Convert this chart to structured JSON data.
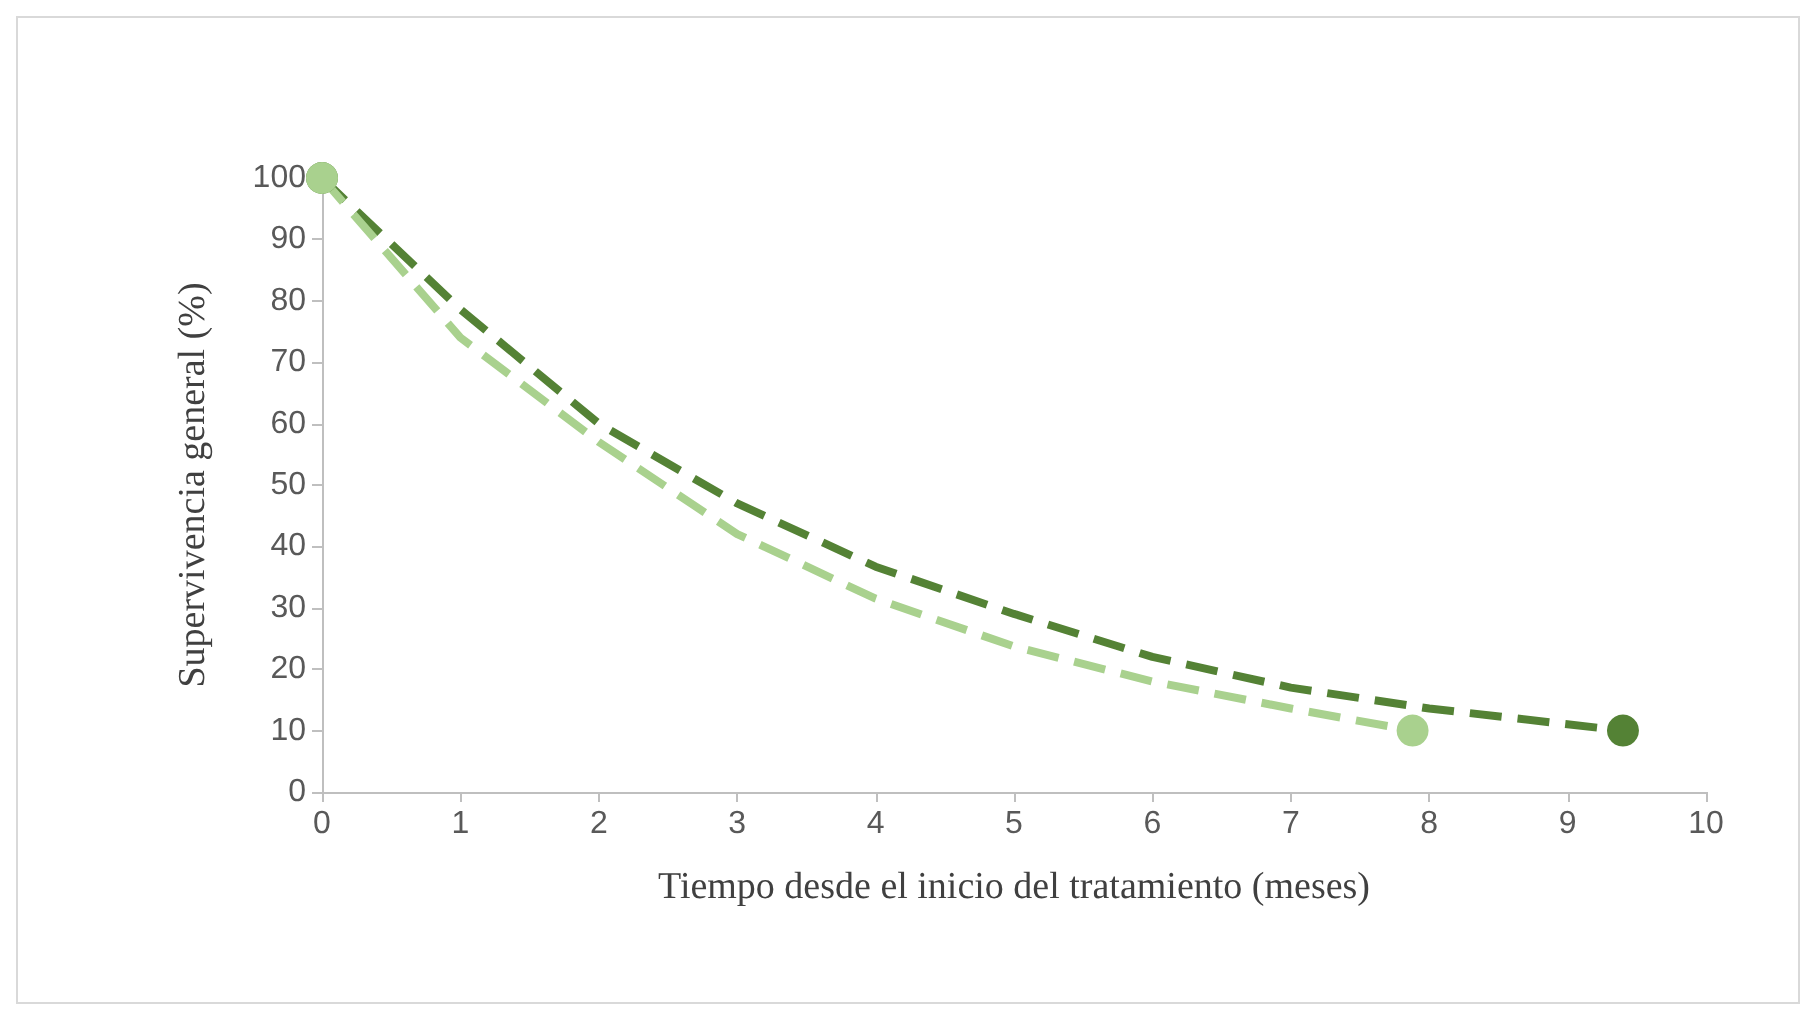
{
  "chart_data": {
    "type": "line",
    "xlabel": "Tiempo desde el inicio del tratamiento (meses)",
    "ylabel": "Supervivencia general (%)",
    "xlim": [
      0,
      10
    ],
    "xticks": [
      0,
      1,
      2,
      3,
      4,
      5,
      6,
      7,
      8,
      9,
      10
    ],
    "ylim": [
      0,
      100
    ],
    "yticks": [
      0,
      10,
      20,
      30,
      40,
      50,
      60,
      70,
      80,
      90,
      100
    ],
    "grid": false,
    "line_style": "dashed",
    "series": [
      {
        "color": "#548235",
        "x": [
          0,
          1,
          2,
          3,
          4,
          5,
          6,
          7,
          8,
          9.4
        ],
        "values": [
          100,
          78.6,
          60,
          47,
          36.7,
          29,
          22,
          17,
          13.6,
          10
        ]
      },
      {
        "color": "#a9d18e",
        "x": [
          0,
          1,
          2,
          3,
          4,
          5,
          6,
          7,
          7.88
        ],
        "values": [
          100,
          74,
          57,
          42,
          31.5,
          23.7,
          18,
          13.6,
          10
        ]
      }
    ]
  }
}
